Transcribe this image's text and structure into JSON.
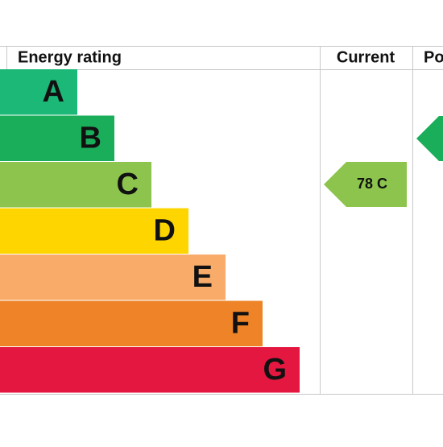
{
  "header": {
    "rating": "Energy rating",
    "current": "Current",
    "potential": "Po"
  },
  "bands": [
    {
      "letter": "A"
    },
    {
      "letter": "B"
    },
    {
      "letter": "C"
    },
    {
      "letter": "D"
    },
    {
      "letter": "E"
    },
    {
      "letter": "F"
    },
    {
      "letter": "G"
    }
  ],
  "current": {
    "label": "78 C"
  }
}
